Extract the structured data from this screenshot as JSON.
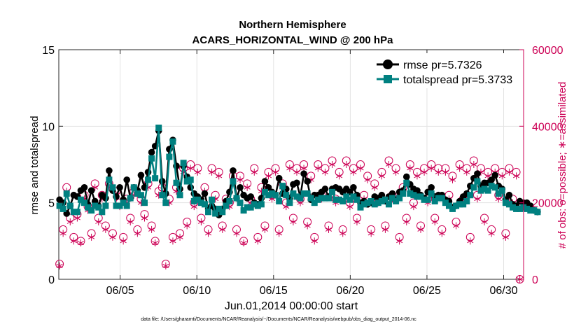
{
  "chart_data": {
    "type": "line",
    "title_line1": "Northern Hemisphere",
    "title_line2": "ACARS_HORIZONTAL_WIND @ 200 hPa",
    "xlabel": "Jun.01,2014 00:00:00 start",
    "ylabel_left": "rmse and totalspread",
    "ylabel_right": "# of obs: o=possible; ∗=assimilated",
    "xlim": [
      1,
      31.3
    ],
    "ylim_left": [
      0,
      15
    ],
    "ylim_right": [
      0,
      60000
    ],
    "x_ticks": [
      5,
      10,
      15,
      20,
      25,
      30
    ],
    "x_tick_labels": [
      "06/05",
      "06/10",
      "06/15",
      "06/20",
      "06/25",
      "06/30"
    ],
    "y_ticks_left": [
      0,
      5,
      10,
      15
    ],
    "y_tick_labels_left": [
      "0",
      "5",
      "10",
      "15"
    ],
    "y_ticks_right": [
      0,
      20000,
      40000,
      60000
    ],
    "y_tick_labels_right": [
      "0",
      "20000",
      "40000",
      "60000"
    ],
    "grid": true,
    "legend_position": "top-right",
    "footnote": "data file: /Users/gharamti/Documents/NCAR/Reanalysis/~/Documents/NCAR/Reanalysis/webpub/obs_diag_output_2014-06.nc",
    "colors": {
      "rmse": "#000000",
      "totalspread": "#008080",
      "obs": "#cc0055"
    },
    "series": [
      {
        "name": "rmse",
        "legend_label": "rmse pr=5.7326",
        "values": [
          5.2,
          5.0,
          4.3,
          4.8,
          5.5,
          5.4,
          5.8,
          6.0,
          4.9,
          5.8,
          5.1,
          4.8,
          5.5,
          5.3,
          7.1,
          5.8,
          5.4,
          6.0,
          5.2,
          6.5,
          5.3,
          6.0,
          5.8,
          6.8,
          6.0,
          7.0,
          8.3,
          8.7,
          9.7,
          6.4,
          5.6,
          8.5,
          9.1,
          7.4,
          5.9,
          7.4,
          6.7,
          6.0,
          5.6,
          5.4,
          5.2,
          5.6,
          4.6,
          4.8,
          4.6,
          4.2,
          4.6,
          5.1,
          5.7,
          7.1,
          5.3,
          6.0,
          5.5,
          5.3,
          5.4,
          5.0,
          4.9,
          5.3,
          6.4,
          6.0,
          5.7,
          5.5,
          6.6,
          5.6,
          5.9,
          5.3,
          6.2,
          6.3,
          5.4,
          6.9,
          6.4,
          5.2,
          5.5,
          5.5,
          5.7,
          5.9,
          5.4,
          5.9,
          6.0,
          5.9,
          5.7,
          5.9,
          5.7,
          6.0,
          5.5,
          5.0,
          5.1,
          4.9,
          5.0,
          5.4,
          5.3,
          5.5,
          5.1,
          5.4,
          5.6,
          5.2,
          5.7,
          5.8,
          6.7,
          6.2,
          5.9,
          5.8,
          5.5,
          5.3,
          5.7,
          6.0,
          5.4,
          5.5,
          5.5,
          5.2,
          5.1,
          4.7,
          4.8,
          5.1,
          5.4,
          5.6,
          6.1,
          6.6,
          6.9,
          6.1,
          6.3,
          6.3,
          6.5,
          6.8,
          6.1,
          5.9,
          5.2,
          5.5,
          4.9,
          4.8,
          5.1,
          5.0,
          5.0,
          4.8,
          4.5,
          4.4
        ],
        "x_start": 1.05,
        "x_step": 0.2308
      },
      {
        "name": "totalspread",
        "legend_label": "totalspread pr=5.3733",
        "values": [
          4.8,
          4.6,
          5.6,
          4.8,
          4.4,
          4.4,
          5.2,
          5.0,
          4.7,
          4.5,
          4.8,
          4.7,
          4.4,
          4.8,
          6.5,
          6.0,
          4.8,
          4.8,
          5.0,
          4.8,
          5.3,
          6.0,
          5.6,
          5.5,
          5.0,
          6.5,
          7.9,
          6.6,
          9.9,
          5.5,
          5.0,
          8.0,
          9.0,
          6.3,
          5.5,
          7.6,
          6.4,
          6.5,
          5.1,
          5.2,
          5.0,
          4.9,
          4.4,
          5.2,
          4.3,
          4.6,
          4.4,
          4.8,
          5.1,
          6.4,
          5.3,
          5.0,
          4.5,
          4.7,
          4.7,
          4.9,
          4.8,
          4.9,
          5.7,
          5.5,
          5.6,
          5.5,
          5.1,
          6.1,
          5.5,
          5.0,
          5.6,
          5.4,
          5.3,
          5.6,
          5.6,
          5.3,
          5.0,
          5.2,
          5.3,
          5.3,
          5.3,
          5.7,
          5.2,
          5.2,
          5.1,
          5.4,
          5.2,
          5.4,
          5.2,
          4.7,
          4.9,
          5.0,
          5.1,
          4.9,
          5.0,
          5.1,
          5.2,
          4.9,
          5.3,
          5.1,
          5.3,
          5.6,
          6.3,
          5.6,
          5.5,
          5.4,
          5.4,
          5.2,
          5.2,
          5.6,
          5.1,
          5.3,
          5.3,
          5.0,
          4.8,
          4.6,
          4.8,
          4.9,
          4.9,
          5.1,
          5.5,
          6.0,
          6.4,
          5.8,
          5.9,
          5.8,
          6.1,
          6.0,
          5.6,
          5.8,
          5.0,
          4.9,
          4.7,
          4.6,
          4.6,
          4.7,
          4.6,
          4.5,
          4.5,
          4.4
        ],
        "x_start": 1.05,
        "x_step": 0.2308
      },
      {
        "name": "obs_possible",
        "values": [
          4000,
          13000,
          24000,
          16000,
          11000,
          17000,
          10000,
          22000,
          19000,
          12000,
          25000,
          16000,
          22000,
          14000,
          25000,
          12000,
          23000,
          20000,
          11000,
          21000,
          16000,
          23000,
          13000,
          21000,
          17000,
          25000,
          14000,
          10000,
          23000,
          24000,
          4000,
          21000,
          11000,
          24000,
          12000,
          29000,
          15000,
          30000,
          20000,
          29000,
          16000,
          24000,
          13000,
          29000,
          22000,
          28000,
          14000,
          21000,
          20000,
          27000,
          13000,
          27000,
          10000,
          25000,
          21000,
          29000,
          11000,
          24000,
          14000,
          28000,
          22000,
          29000,
          13000,
          25000,
          20000,
          30000,
          16000,
          29000,
          21000,
          30000,
          15000,
          27000,
          11000,
          30000,
          22000,
          29000,
          14000,
          31000,
          21000,
          28000,
          13000,
          31000,
          20000,
          29000,
          16000,
          30000,
          22000,
          27000,
          13000,
          25000,
          21000,
          28000,
          14000,
          31000,
          22000,
          29000,
          11000,
          24000,
          16000,
          30000,
          20000,
          28000,
          14000,
          29000,
          21000,
          30000,
          16000,
          29000,
          13000,
          29000,
          22000,
          27000,
          15000,
          30000,
          21000,
          29000,
          11000,
          31000,
          22000,
          29000,
          16000,
          28000,
          13000,
          29000,
          22000,
          28000,
          12000,
          29000,
          21000,
          28000,
          0
        ],
        "x_start": 1.05,
        "x_step": 0.2308
      },
      {
        "name": "obs_assimilated",
        "values": [
          3500,
          12000,
          23000,
          15000,
          10000,
          16000,
          9500,
          21000,
          18000,
          11000,
          24000,
          15000,
          21000,
          13000,
          24000,
          11000,
          22000,
          19000,
          10000,
          20000,
          15000,
          22000,
          12000,
          20000,
          16000,
          24000,
          13000,
          9500,
          22000,
          23000,
          3500,
          20000,
          10000,
          23000,
          11000,
          28000,
          14000,
          29000,
          19000,
          28000,
          15000,
          23000,
          12000,
          28000,
          21000,
          27000,
          13000,
          20000,
          19000,
          26000,
          12000,
          26000,
          9500,
          24000,
          20000,
          28000,
          10000,
          23000,
          13000,
          27000,
          21000,
          28000,
          12000,
          24000,
          19000,
          29000,
          15000,
          28000,
          20000,
          29000,
          14000,
          26000,
          10000,
          29000,
          21000,
          28000,
          13000,
          30000,
          20000,
          27000,
          12000,
          30000,
          19000,
          28000,
          15000,
          29000,
          21000,
          26000,
          12000,
          24000,
          20000,
          27000,
          13000,
          30000,
          21000,
          28000,
          10000,
          23000,
          15000,
          29000,
          19000,
          27000,
          13000,
          28000,
          20000,
          29000,
          15000,
          28000,
          12000,
          28000,
          21000,
          26000,
          14000,
          29000,
          20000,
          28000,
          10000,
          30000,
          21000,
          28000,
          15000,
          27000,
          12000,
          28000,
          21000,
          27000,
          11000,
          28000,
          20000,
          27000,
          0
        ],
        "x_start": 1.05,
        "x_step": 0.2308
      }
    ]
  }
}
